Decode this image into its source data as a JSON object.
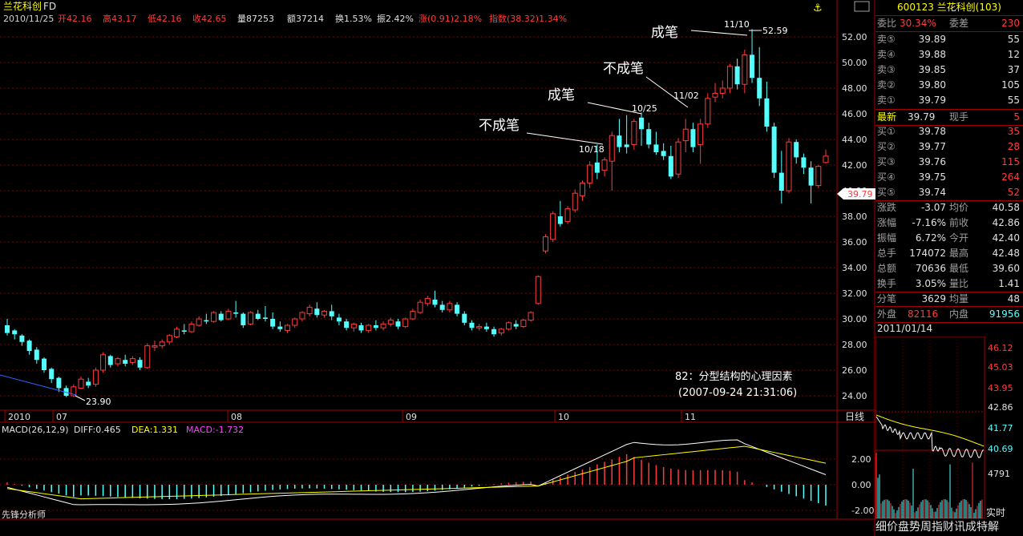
{
  "header": {
    "name": "兰花科创",
    "suffix": "FD",
    "date": "2010/11/25",
    "open_label": "开",
    "open": "42.16",
    "high_label": "高",
    "high": "43.17",
    "low_label": "低",
    "low": "42.16",
    "close_label": "收",
    "close": "42.65",
    "vol_label": "量",
    "vol": "87253",
    "amt_label": "额",
    "amt": "37214",
    "turn_label": "换",
    "turn": "1.53%",
    "amp_label": "振",
    "amp": "2.42%",
    "chg_label": "涨",
    "chg": "(0.91)2.18%",
    "idx_label": "指数",
    "idx": "(38.32)1.34%"
  },
  "annotations": {
    "a1": "成笔",
    "a2": "不成笔",
    "a3": "成笔",
    "a4": "不成笔",
    "d1018": "10/18",
    "d1025": "10/25",
    "d1102": "11/02",
    "d1110": "11/10",
    "high_val": "52.59",
    "low_val": "23.90",
    "caption1": "82：分型结构的心理因素",
    "caption2": "(2007-09-24 21:31:06)"
  },
  "price_axis": [
    "52.00",
    "50.00",
    "48.00",
    "46.00",
    "44.00",
    "42.00",
    "40.00",
    "38.00",
    "36.00",
    "34.00",
    "32.00",
    "30.00",
    "28.00",
    "26.00",
    "24.00"
  ],
  "current_price_tag": "39.79",
  "time_axis": [
    "2010",
    "07",
    "08",
    "09",
    "10",
    "11"
  ],
  "period_label": "日线",
  "macd": {
    "label": "MACD(26,12,9)",
    "diff": "DIFF:0.465",
    "dea": "DEA:1.331",
    "macd": "MACD:-1.732",
    "axis": [
      "2.00",
      "0.00",
      "-2.00"
    ]
  },
  "footer_brand": "先锋分析师",
  "side": {
    "code_name": "600123 兰花科创(103)",
    "weibi_label": "委比",
    "weibi": "30.34%",
    "weicha_label": "委差",
    "weicha": "230",
    "asks": [
      {
        "label": "卖⑤",
        "price": "39.89",
        "vol": "55"
      },
      {
        "label": "卖④",
        "price": "39.88",
        "vol": "12"
      },
      {
        "label": "卖③",
        "price": "39.85",
        "vol": "37"
      },
      {
        "label": "卖②",
        "price": "39.80",
        "vol": "105"
      },
      {
        "label": "卖①",
        "price": "39.79",
        "vol": "55"
      }
    ],
    "last_label": "最新",
    "last": "39.79",
    "cur_hand_label": "现手",
    "cur_hand": "5",
    "bids": [
      {
        "label": "买①",
        "price": "39.78",
        "vol": "35"
      },
      {
        "label": "买②",
        "price": "39.77",
        "vol": "28"
      },
      {
        "label": "买③",
        "price": "39.76",
        "vol": "115"
      },
      {
        "label": "买④",
        "price": "39.75",
        "vol": "264"
      },
      {
        "label": "买⑤",
        "price": "39.74",
        "vol": "52"
      }
    ],
    "stats": [
      {
        "l1": "涨跌",
        "v1": "-3.07",
        "l2": "均价",
        "v2": "40.58"
      },
      {
        "l1": "涨幅",
        "v1": "-7.16%",
        "l2": "前收",
        "v2": "42.86"
      },
      {
        "l1": "振幅",
        "v1": "6.72%",
        "l2": "今开",
        "v2": "42.40"
      },
      {
        "l1": "总手",
        "v1": "174072",
        "l2": "最高",
        "v2": "42.48"
      },
      {
        "l1": "总额",
        "v1": "70636",
        "l2": "最低",
        "v2": "39.60"
      },
      {
        "l1": "换手",
        "v1": "3.05%",
        "l2": "量比",
        "v2": "1.41"
      },
      {
        "l1": "分笔",
        "v1": "3629",
        "l2": "均量",
        "v2": "48"
      }
    ],
    "outer_label": "外盘",
    "outer": "82116",
    "inner_label": "内盘",
    "inner": "91956",
    "intraday_date": "2011/01/14",
    "intraday_axis": [
      "46.12",
      "45.03",
      "43.95",
      "42.86",
      "41.77",
      "40.69"
    ],
    "vol_axis": "4791",
    "realtime_label": "实时",
    "bottom_menu": "细价盘势周指财讯成特解"
  },
  "colors": {
    "up": "#ff3b3b",
    "down": "#54ffff",
    "bg": "#000000",
    "grid": "#800000"
  }
}
